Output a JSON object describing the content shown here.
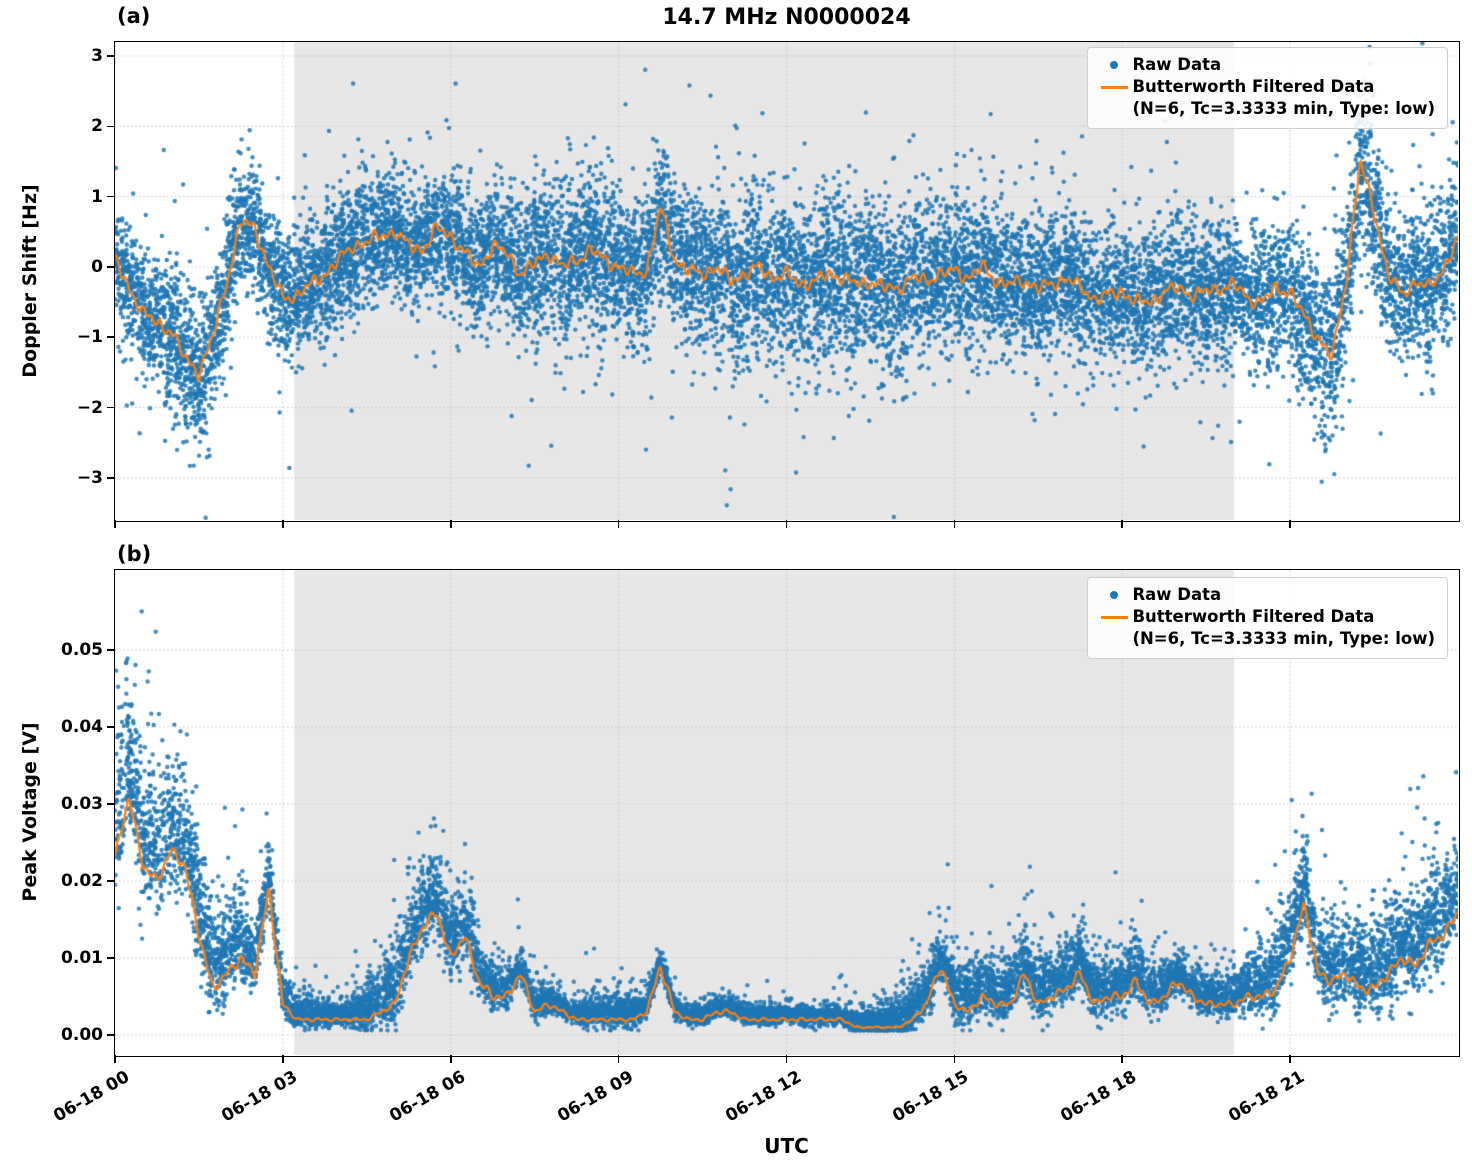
{
  "figure": {
    "title": "14.7 MHz N0000024",
    "xlabel": "UTC",
    "panel_a_tag": "(a)",
    "panel_b_tag": "(b)"
  },
  "legend": {
    "raw_label": "Raw Data",
    "filtered_label": "Butterworth Filtered Data",
    "filtered_sublabel": "(N=6, Tc=3.3333 min, Type: low)"
  },
  "colors": {
    "raw": "#1f77b4",
    "filtered": "#ff7f0e",
    "shade": "#e7e7e7",
    "grid": "#b8b8b8"
  },
  "chart_data": [
    {
      "type": "scatter",
      "panel": "a",
      "title": "14.7 MHz N0000024",
      "ylabel": "Doppler Shift [Hz]",
      "xlabel": "UTC",
      "ylim": [
        -3.6,
        3.2
      ],
      "yticks": [
        3,
        2,
        1,
        0,
        -1,
        -2,
        -3
      ],
      "ytick_labels": [
        "3",
        "2",
        "1",
        "0",
        "−1",
        "−2",
        "−3"
      ],
      "x_hours_range": [
        0,
        24
      ],
      "xtick_hours": [
        0,
        3,
        6,
        9,
        12,
        15,
        18,
        21
      ],
      "xtick_labels": [
        "06-18 00",
        "06-18 03",
        "06-18 06",
        "06-18 09",
        "06-18 12",
        "06-18 15",
        "06-18 18",
        "06-18 21"
      ],
      "shade_hours": [
        3.2,
        20.0
      ],
      "grid": true,
      "legend_loc": "upper right",
      "series": [
        {
          "name": "Raw Data",
          "type": "scatter",
          "envelope": {
            "t_start": 0,
            "t_step": 1,
            "n_points": 14000,
            "spread": [
              0.35,
              0.5,
              0.45,
              0.45,
              0.45,
              0.4,
              0.45,
              0.5,
              0.55,
              0.55,
              0.5,
              0.55,
              0.55,
              0.6,
              0.55,
              0.5,
              0.5,
              0.5,
              0.45,
              0.5,
              0.45,
              0.55,
              0.6,
              0.5,
              0.5
            ]
          }
        },
        {
          "name": "Butterworth Filtered Data (N=6, Tc=3.3333 min, Type: low)",
          "type": "line",
          "t_start": 0,
          "t_step": 0.25,
          "values": [
            0.1,
            -0.3,
            -0.65,
            -0.8,
            -0.9,
            -1.3,
            -1.5,
            -1.0,
            -0.2,
            0.65,
            0.55,
            0.0,
            -0.45,
            -0.4,
            -0.25,
            -0.1,
            0.1,
            0.3,
            0.35,
            0.45,
            0.5,
            0.3,
            0.25,
            0.55,
            0.45,
            0.2,
            0.0,
            0.3,
            0.2,
            -0.1,
            0.05,
            0.2,
            0.0,
            0.1,
            0.25,
            0.1,
            0.0,
            -0.1,
            -0.05,
            0.85,
            0.1,
            -0.05,
            -0.1,
            0.0,
            -0.2,
            -0.1,
            0.0,
            -0.15,
            -0.1,
            -0.25,
            -0.2,
            -0.1,
            -0.15,
            -0.25,
            -0.2,
            -0.3,
            -0.3,
            -0.15,
            -0.2,
            -0.1,
            -0.05,
            -0.15,
            0.0,
            -0.2,
            -0.25,
            -0.2,
            -0.3,
            -0.25,
            -0.15,
            -0.3,
            -0.45,
            -0.4,
            -0.35,
            -0.5,
            -0.5,
            -0.35,
            -0.3,
            -0.4,
            -0.35,
            -0.3,
            -0.25,
            -0.45,
            -0.5,
            -0.3,
            -0.35,
            -0.7,
            -1.0,
            -1.3,
            -0.2,
            1.5,
            0.8,
            -0.1,
            -0.4,
            -0.2,
            -0.3,
            0.0,
            0.4
          ]
        }
      ]
    },
    {
      "type": "scatter",
      "panel": "b",
      "title": "",
      "ylabel": "Peak Voltage [V]",
      "xlabel": "UTC",
      "ylim": [
        -0.0026,
        0.0604
      ],
      "yticks": [
        0.05,
        0.04,
        0.03,
        0.02,
        0.01,
        0.0
      ],
      "ytick_labels": [
        "0.05",
        "0.04",
        "0.03",
        "0.02",
        "0.01",
        "0.00"
      ],
      "x_hours_range": [
        0,
        24
      ],
      "xtick_hours": [
        0,
        3,
        6,
        9,
        12,
        15,
        18,
        21
      ],
      "xtick_labels": [
        "06-18 00",
        "06-18 03",
        "06-18 06",
        "06-18 09",
        "06-18 12",
        "06-18 15",
        "06-18 18",
        "06-18 21"
      ],
      "shade_hours": [
        3.2,
        20.0
      ],
      "grid": true,
      "legend_loc": "upper right",
      "series": [
        {
          "name": "Raw Data",
          "type": "scatter",
          "envelope": {
            "t_start": 0,
            "t_step": 1,
            "n_points": 12000,
            "spread": [
              0.008,
              0.007,
              0.005,
              0.002,
              0.001,
              0.004,
              0.004,
              0.002,
              0.001,
              0.002,
              0.001,
              0.001,
              0.001,
              0.001,
              0.002,
              0.003,
              0.003,
              0.003,
              0.003,
              0.002,
              0.002,
              0.005,
              0.004,
              0.005,
              0.005
            ]
          }
        },
        {
          "name": "Butterworth Filtered Data (N=6, Tc=3.3333 min, Type: low)",
          "type": "line",
          "t_start": 0,
          "t_step": 0.25,
          "values": [
            0.023,
            0.031,
            0.022,
            0.02,
            0.024,
            0.022,
            0.013,
            0.006,
            0.008,
            0.01,
            0.008,
            0.019,
            0.004,
            0.002,
            0.002,
            0.002,
            0.002,
            0.002,
            0.002,
            0.003,
            0.004,
            0.01,
            0.014,
            0.016,
            0.01,
            0.013,
            0.007,
            0.005,
            0.005,
            0.008,
            0.003,
            0.004,
            0.003,
            0.002,
            0.002,
            0.002,
            0.002,
            0.002,
            0.003,
            0.009,
            0.003,
            0.002,
            0.002,
            0.003,
            0.003,
            0.002,
            0.002,
            0.002,
            0.002,
            0.002,
            0.002,
            0.002,
            0.002,
            0.001,
            0.001,
            0.001,
            0.001,
            0.002,
            0.004,
            0.009,
            0.004,
            0.003,
            0.005,
            0.004,
            0.004,
            0.008,
            0.004,
            0.005,
            0.006,
            0.008,
            0.004,
            0.005,
            0.005,
            0.007,
            0.004,
            0.005,
            0.007,
            0.005,
            0.004,
            0.004,
            0.004,
            0.005,
            0.005,
            0.006,
            0.01,
            0.017,
            0.008,
            0.007,
            0.008,
            0.006,
            0.006,
            0.008,
            0.01,
            0.009,
            0.012,
            0.013,
            0.016
          ]
        }
      ]
    }
  ]
}
